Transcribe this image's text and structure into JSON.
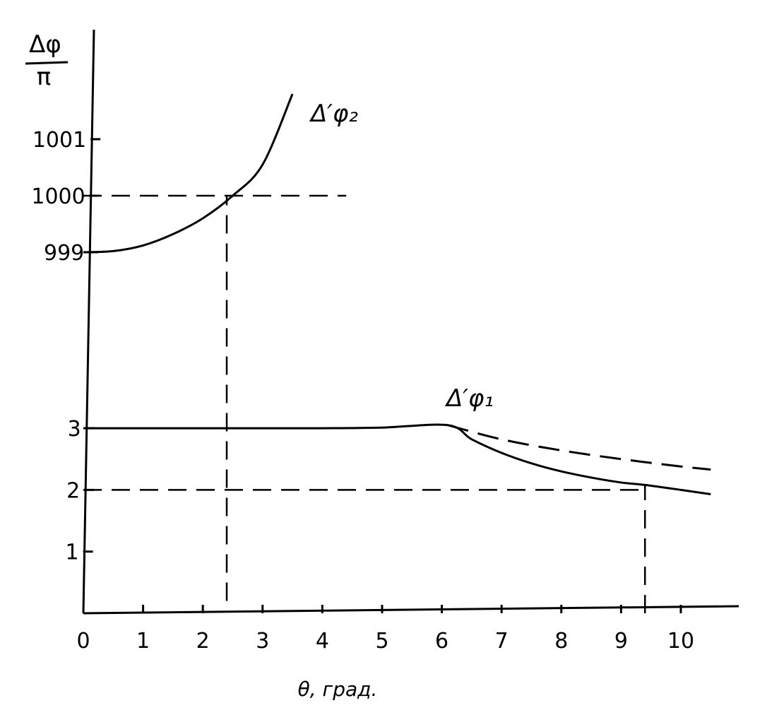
{
  "chart_data": {
    "type": "line",
    "title": "",
    "xlabel": "θ, град.",
    "ylabel_numerator": "Δφ",
    "ylabel_denominator": "π",
    "xlim": [
      0,
      10.6
    ],
    "x_ticks": [
      0,
      1,
      2,
      3,
      4,
      5,
      6,
      7,
      8,
      9,
      10
    ],
    "x_tick_labels": [
      "0",
      "1",
      "2",
      "3",
      "4",
      "5",
      "6",
      "7",
      "8",
      "9",
      "10"
    ],
    "y_axis_broken": true,
    "y_ticks": [
      1,
      2,
      3,
      999,
      1000,
      1001
    ],
    "y_tick_labels": [
      "1",
      "2",
      "3",
      "999",
      "1000",
      "1001"
    ],
    "grid": false,
    "series": [
      {
        "name": "Δ′φ₂",
        "style": "solid",
        "x": [
          0.0,
          0.5,
          1.0,
          1.5,
          2.0,
          2.5,
          3.0,
          3.5
        ],
        "y": [
          999.0,
          999.02,
          999.12,
          999.32,
          999.6,
          1000.0,
          1000.55,
          1001.8
        ]
      },
      {
        "name": "Δ′φ₁",
        "style": "solid",
        "x": [
          0.0,
          1.0,
          2.0,
          3.0,
          4.0,
          5.0,
          6.1,
          6.5,
          7.0,
          7.5,
          8.0,
          8.5,
          9.0,
          9.4,
          10.0,
          10.5
        ],
        "y": [
          3.0,
          3.0,
          3.0,
          3.0,
          3.0,
          3.01,
          3.05,
          2.82,
          2.6,
          2.43,
          2.3,
          2.2,
          2.12,
          2.08,
          2.0,
          1.93
        ]
      },
      {
        "style": "dashed",
        "x": [
          6.1,
          7.0,
          8.0,
          9.0,
          10.0,
          10.5
        ],
        "y": [
          3.05,
          2.82,
          2.64,
          2.5,
          2.38,
          2.33
        ]
      }
    ],
    "reference_lines": [
      {
        "type": "horizontal",
        "y": 1000,
        "x_range": [
          0,
          4.4
        ],
        "style": "dashed"
      },
      {
        "type": "vertical",
        "x": 2.4,
        "y_range": [
          0.2,
          1000
        ],
        "style": "dashed"
      },
      {
        "type": "horizontal",
        "y": 2,
        "x_range": [
          0,
          9.4
        ],
        "style": "dashed"
      },
      {
        "type": "vertical",
        "x": 9.4,
        "y_range": [
          0,
          2.08
        ],
        "style": "dashed"
      }
    ]
  },
  "annotations": {
    "curve2_label": "Δ′φ₂",
    "curve1_label": "Δ′φ₁"
  }
}
